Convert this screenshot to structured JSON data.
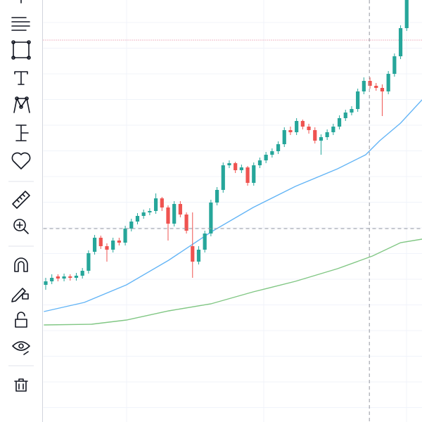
{
  "chart_data": {
    "type": "candlestick",
    "xlim": [
      -0.4,
      61.5
    ],
    "ylim": [
      0,
      600
    ],
    "up_color": "#26a69a",
    "down_color": "#ef5350",
    "grid": true,
    "candles": {
      "open": [
        195,
        200,
        207,
        204,
        207,
        205,
        208,
        215,
        242,
        262,
        250,
        245,
        258,
        255,
        275,
        285,
        293,
        298,
        300,
        318,
        305,
        282,
        310,
        295,
        250,
        228,
        245,
        268,
        312,
        330,
        365,
        368,
        358,
        362,
        340,
        365,
        372,
        380,
        385,
        395,
        415,
        412,
        428,
        420,
        415,
        400,
        405,
        412,
        420,
        432,
        440,
        445,
        470,
        485,
        478,
        475,
        470,
        495,
        520,
        560
      ],
      "high": [
        205,
        210,
        210,
        211,
        210,
        212,
        219,
        244,
        266,
        265,
        254,
        262,
        262,
        279,
        289,
        297,
        302,
        304,
        325,
        320,
        308,
        314,
        314,
        298,
        298,
        250,
        272,
        316,
        334,
        369,
        372,
        370,
        366,
        364,
        369,
        376,
        384,
        389,
        399,
        419,
        420,
        432,
        430,
        424,
        419,
        409,
        416,
        424,
        436,
        444,
        449,
        474,
        490,
        490,
        482,
        480,
        499,
        524,
        564,
        604
      ],
      "low": [
        188,
        196,
        200,
        200,
        201,
        201,
        204,
        211,
        238,
        246,
        228,
        241,
        251,
        251,
        271,
        281,
        289,
        294,
        296,
        300,
        258,
        278,
        291,
        268,
        205,
        224,
        241,
        264,
        308,
        326,
        361,
        354,
        354,
        336,
        336,
        361,
        368,
        376,
        381,
        391,
        408,
        408,
        416,
        410,
        396,
        380,
        401,
        408,
        416,
        428,
        436,
        441,
        466,
        474,
        471,
        435,
        466,
        491,
        516,
        556
      ],
      "close": [
        200,
        205,
        204,
        207,
        205,
        208,
        215,
        240,
        262,
        250,
        245,
        258,
        255,
        275,
        285,
        293,
        298,
        300,
        318,
        305,
        282,
        310,
        295,
        272,
        228,
        245,
        268,
        312,
        330,
        365,
        368,
        358,
        362,
        340,
        365,
        372,
        380,
        385,
        395,
        415,
        412,
        428,
        420,
        415,
        400,
        405,
        412,
        420,
        432,
        440,
        445,
        470,
        485,
        478,
        475,
        470,
        495,
        520,
        560,
        600
      ]
    },
    "moving_averages": [
      {
        "color": "#64b5f6",
        "x": [
          -0.3,
          6.3,
          13.2,
          20.1,
          27,
          33.9,
          40.8,
          47.7,
          52.3,
          54.6,
          58,
          61.5
        ],
        "values": [
          157,
          170,
          195,
          230,
          270,
          305,
          335,
          360,
          380,
          400,
          425,
          458
        ]
      },
      {
        "color": "#81c784",
        "x": [
          -0.3,
          7.5,
          13.2,
          20.1,
          27,
          33.9,
          40.8,
          47.7,
          53.4,
          58,
          61.5
        ],
        "values": [
          138,
          139,
          145,
          158,
          168,
          185,
          200,
          218,
          236,
          255,
          260
        ]
      }
    ],
    "crosshair": {
      "x": 52.9,
      "y": 275
    },
    "price_line": {
      "value": 543,
      "color": "#e57390"
    }
  }
}
